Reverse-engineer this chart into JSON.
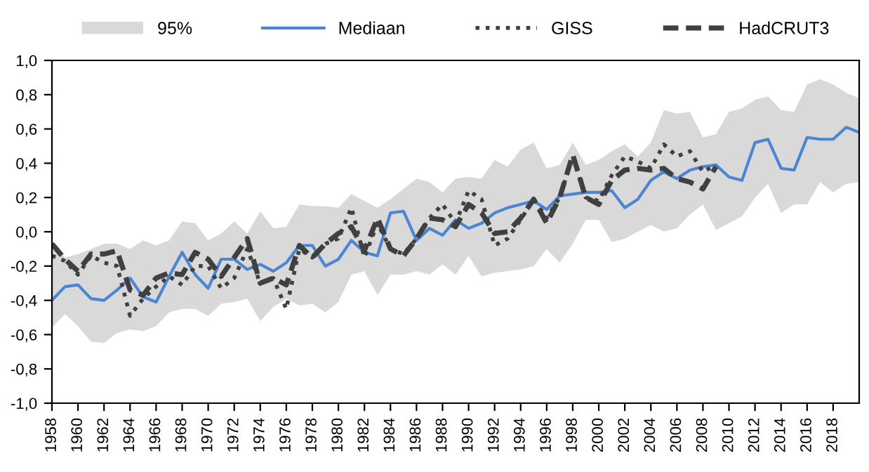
{
  "chart_data": {
    "type": "line",
    "x": [
      1958,
      1959,
      1960,
      1961,
      1962,
      1963,
      1964,
      1965,
      1966,
      1967,
      1968,
      1969,
      1970,
      1971,
      1972,
      1973,
      1974,
      1975,
      1976,
      1977,
      1978,
      1979,
      1980,
      1981,
      1982,
      1983,
      1984,
      1985,
      1986,
      1987,
      1988,
      1989,
      1990,
      1991,
      1992,
      1993,
      1994,
      1995,
      1996,
      1997,
      1998,
      1999,
      2000,
      2001,
      2002,
      2003,
      2004,
      2005,
      2006,
      2007,
      2008,
      2009,
      2010,
      2011,
      2012,
      2013,
      2014,
      2015,
      2016,
      2017,
      2018,
      2019,
      2020
    ],
    "annotations": [
      "95%"
    ],
    "series": [
      {
        "name": "Mediaan",
        "color": "#4a86d4",
        "line_style": "solid",
        "values": [
          -0.4,
          -0.32,
          -0.31,
          -0.39,
          -0.4,
          -0.34,
          -0.27,
          -0.38,
          -0.41,
          -0.26,
          -0.12,
          -0.25,
          -0.33,
          -0.16,
          -0.16,
          -0.22,
          -0.19,
          -0.23,
          -0.18,
          -0.08,
          -0.08,
          -0.2,
          -0.16,
          -0.05,
          -0.12,
          -0.14,
          0.11,
          0.12,
          -0.05,
          0.02,
          -0.02,
          0.07,
          0.02,
          0.05,
          0.11,
          0.14,
          0.16,
          0.18,
          0.13,
          0.21,
          0.22,
          0.23,
          0.23,
          0.24,
          0.14,
          0.19,
          0.3,
          0.35,
          0.31,
          0.36,
          0.38,
          0.39,
          0.32,
          0.3,
          0.52,
          0.54,
          0.37,
          0.36,
          0.55,
          0.54,
          0.54,
          0.61,
          0.58
        ],
        "lower": [
          -0.56,
          -0.48,
          -0.55,
          -0.64,
          -0.65,
          -0.59,
          -0.57,
          -0.58,
          -0.55,
          -0.47,
          -0.45,
          -0.45,
          -0.49,
          -0.42,
          -0.41,
          -0.39,
          -0.52,
          -0.44,
          -0.39,
          -0.43,
          -0.42,
          -0.47,
          -0.41,
          -0.25,
          -0.23,
          -0.37,
          -0.25,
          -0.25,
          -0.23,
          -0.25,
          -0.19,
          -0.25,
          -0.14,
          -0.26,
          -0.24,
          -0.23,
          -0.22,
          -0.2,
          -0.1,
          -0.18,
          -0.07,
          0.07,
          0.07,
          -0.06,
          -0.04,
          0.0,
          0.04,
          0.0,
          0.02,
          0.1,
          0.16,
          0.01,
          0.05,
          0.09,
          0.2,
          0.28,
          0.11,
          0.16,
          0.16,
          0.29,
          0.23,
          0.28,
          0.29
        ],
        "upper": [
          -0.06,
          -0.15,
          -0.13,
          -0.1,
          -0.07,
          -0.07,
          -0.1,
          -0.05,
          -0.08,
          -0.05,
          0.06,
          0.05,
          -0.05,
          -0.01,
          0.06,
          -0.01,
          0.12,
          0.02,
          0.03,
          0.16,
          0.15,
          0.15,
          0.14,
          0.22,
          0.18,
          0.14,
          0.19,
          0.25,
          0.31,
          0.29,
          0.23,
          0.31,
          0.32,
          0.31,
          0.42,
          0.38,
          0.48,
          0.52,
          0.37,
          0.39,
          0.52,
          0.39,
          0.42,
          0.47,
          0.51,
          0.44,
          0.52,
          0.71,
          0.69,
          0.7,
          0.55,
          0.57,
          0.7,
          0.72,
          0.77,
          0.79,
          0.71,
          0.7,
          0.86,
          0.89,
          0.86,
          0.81,
          0.78
        ]
      },
      {
        "name": "GISS",
        "color": "#404040",
        "line_style": "dotted",
        "values": [
          -0.14,
          -0.17,
          -0.25,
          -0.14,
          -0.18,
          -0.2,
          -0.49,
          -0.39,
          -0.32,
          -0.26,
          -0.31,
          -0.2,
          -0.2,
          -0.33,
          -0.27,
          -0.1,
          -0.3,
          -0.27,
          -0.45,
          -0.1,
          -0.15,
          -0.07,
          -0.04,
          0.14,
          -0.15,
          0.05,
          -0.1,
          -0.13,
          -0.04,
          0.08,
          0.16,
          0.05,
          0.24,
          0.19,
          -0.08,
          -0.04,
          0.07,
          0.19,
          0.08,
          0.2,
          0.44,
          0.2,
          0.18,
          0.33,
          0.44,
          0.41,
          0.37,
          0.51,
          0.44,
          0.47,
          0.35,
          0.39,
          null,
          null,
          null,
          null,
          null,
          null,
          null,
          null,
          null,
          null,
          null
        ]
      },
      {
        "name": "HadCRUT3",
        "color": "#404040",
        "line_style": "dashed",
        "values": [
          -0.07,
          -0.16,
          -0.23,
          -0.13,
          -0.13,
          -0.11,
          -0.34,
          -0.37,
          -0.27,
          -0.24,
          -0.25,
          -0.12,
          -0.16,
          -0.26,
          -0.15,
          -0.04,
          -0.3,
          -0.27,
          -0.31,
          -0.08,
          -0.15,
          -0.07,
          -0.01,
          0.03,
          -0.11,
          0.08,
          -0.1,
          -0.14,
          -0.04,
          0.08,
          0.07,
          0.03,
          0.16,
          0.11,
          -0.01,
          0.0,
          0.08,
          0.19,
          0.05,
          0.2,
          0.45,
          0.2,
          0.16,
          0.3,
          0.36,
          0.37,
          0.36,
          0.37,
          0.31,
          0.29,
          0.25,
          0.38,
          null,
          null,
          null,
          null,
          null,
          null,
          null,
          null,
          null,
          null,
          null
        ]
      }
    ],
    "xlim": [
      1958,
      2020
    ],
    "xticks": [
      1958,
      1960,
      1962,
      1964,
      1966,
      1968,
      1970,
      1972,
      1974,
      1976,
      1978,
      1980,
      1982,
      1984,
      1986,
      1988,
      1990,
      1992,
      1994,
      1996,
      1998,
      2000,
      2002,
      2004,
      2006,
      2008,
      2010,
      2012,
      2014,
      2016,
      2018
    ],
    "ylim": [
      -1.0,
      1.0
    ],
    "yticks": [
      {
        "value": -1.0,
        "label": "-1,0"
      },
      {
        "value": -0.8,
        "label": "-0,8"
      },
      {
        "value": -0.6,
        "label": "-0,6"
      },
      {
        "value": -0.4,
        "label": "-0,4"
      },
      {
        "value": -0.2,
        "label": "-0,2"
      },
      {
        "value": 0.0,
        "label": "0,0"
      },
      {
        "value": 0.2,
        "label": "0,2"
      },
      {
        "value": 0.4,
        "label": "0,4"
      },
      {
        "value": 0.6,
        "label": "0,6"
      },
      {
        "value": 0.8,
        "label": "0,8"
      },
      {
        "value": 1.0,
        "label": "1,0"
      }
    ],
    "grid": false,
    "legend": "top"
  }
}
